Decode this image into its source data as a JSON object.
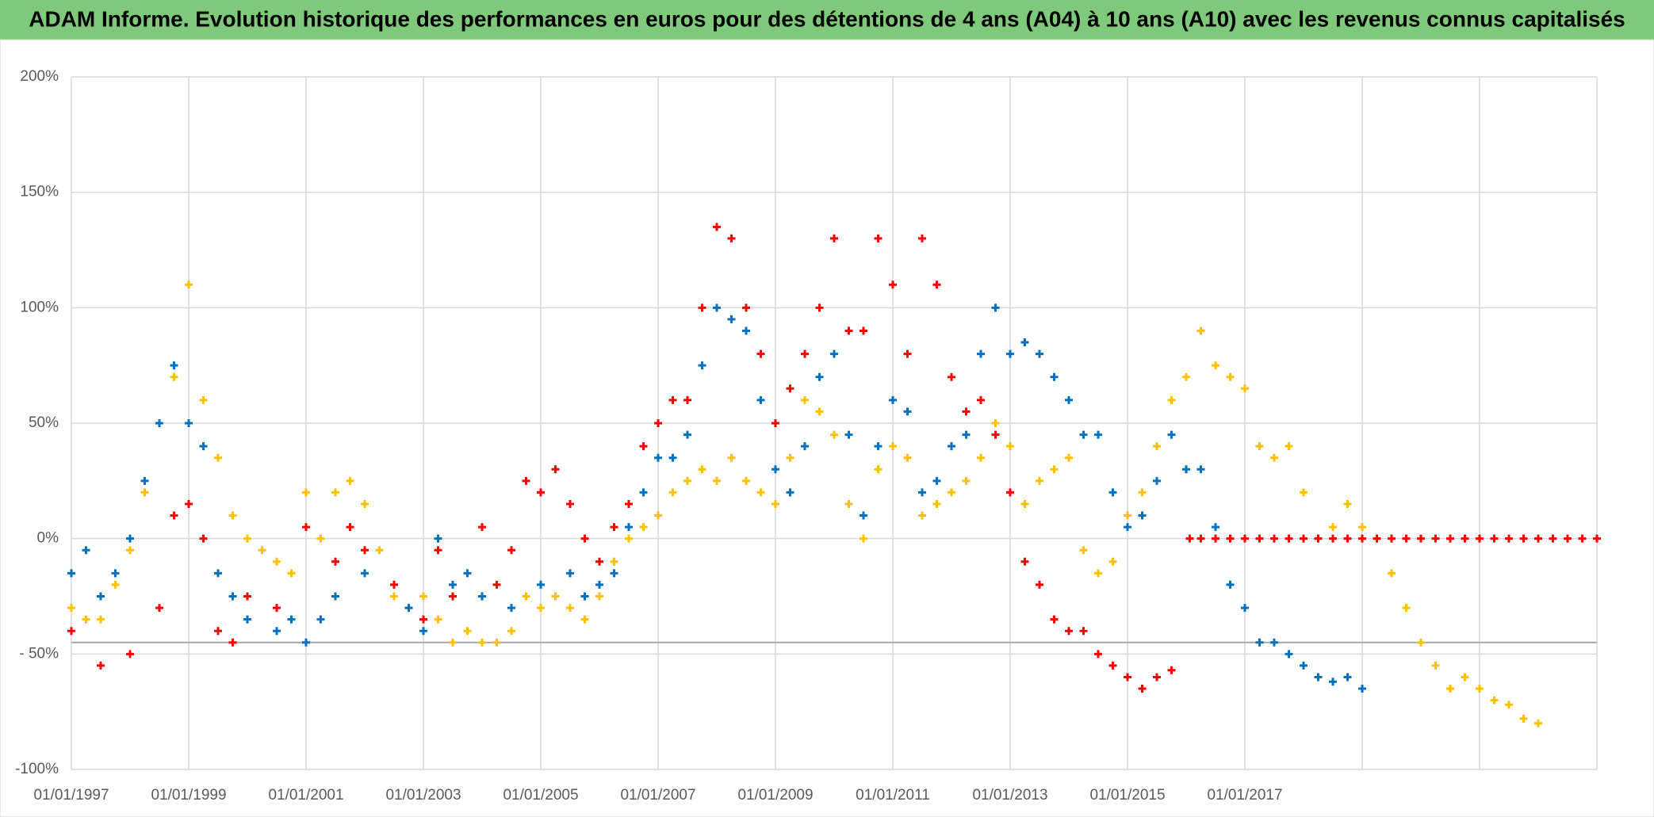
{
  "chart_data": {
    "type": "scatter",
    "title": "ADAM Informe. Evolution historique des performances en euros pour des détentions de 4 ans (A04) à 10 ans (A10) avec les revenus connus capitalisés",
    "xlim": [
      1997,
      2023
    ],
    "xticks": [
      {
        "value": 1997,
        "label": "01/01/1997"
      },
      {
        "value": 1999,
        "label": "01/01/1999"
      },
      {
        "value": 2001,
        "label": "01/01/2001"
      },
      {
        "value": 2003,
        "label": "01/01/2003"
      },
      {
        "value": 2005,
        "label": "01/01/2005"
      },
      {
        "value": 2007,
        "label": "01/01/2007"
      },
      {
        "value": 2009,
        "label": "01/01/2009"
      },
      {
        "value": 2011,
        "label": "01/01/2011"
      },
      {
        "value": 2013,
        "label": "01/01/2013"
      },
      {
        "value": 2015,
        "label": "01/01/2015"
      },
      {
        "value": 2017,
        "label": "01/01/2017"
      },
      {
        "value": 2019,
        "label": null
      },
      {
        "value": 2021,
        "label": null
      },
      {
        "value": 2023,
        "label": null
      }
    ],
    "ylim": [
      -100,
      200
    ],
    "yticks": [
      {
        "value": -100,
        "label": "-100%"
      },
      {
        "value": -50,
        "label": "- 50%"
      },
      {
        "value": 0,
        "label": "0%"
      },
      {
        "value": 50,
        "label": "50%"
      },
      {
        "value": 100,
        "label": "100%"
      },
      {
        "value": 150,
        "label": "150%"
      },
      {
        "value": 200,
        "label": "200%"
      }
    ],
    "grid": true,
    "reference_line": -45,
    "series": [
      {
        "color": "#ffc000",
        "x": [
          1997,
          1997.25,
          1997.5,
          1997.75,
          1998,
          1998.25,
          1998.5,
          1998.75,
          1999,
          1999.25,
          1999.5,
          1999.75,
          2000,
          2000.25,
          2000.5,
          2000.75,
          2001,
          2001.25,
          2001.5,
          2001.75,
          2002,
          2002.25,
          2002.5,
          2002.75,
          2003,
          2003.25,
          2003.5,
          2003.75,
          2004,
          2004.25,
          2004.5,
          2004.75,
          2005,
          2005.25,
          2005.5,
          2005.75,
          2006,
          2006.25,
          2006.5,
          2006.75,
          2007,
          2007.25,
          2007.5,
          2007.75,
          2008,
          2008.25,
          2008.5,
          2008.75,
          2009,
          2009.25,
          2009.5,
          2009.75,
          2010,
          2010.25,
          2010.5,
          2010.75,
          2011,
          2011.25,
          2011.5,
          2011.75,
          2012,
          2012.25,
          2012.5,
          2012.75,
          2013,
          2013.25,
          2013.5,
          2013.75,
          2014,
          2014.25,
          2014.5,
          2014.75,
          2015,
          2015.25,
          2015.5,
          2015.75,
          2016,
          2016.25,
          2016.5,
          2016.75,
          2017,
          2017.25,
          2017.5,
          2017.75,
          2018,
          2018.25,
          2018.5,
          2018.75,
          2019,
          2019.25,
          2019.5,
          2019.75,
          2020,
          2020.25,
          2020.5,
          2020.75,
          2021,
          2021.25,
          2021.5,
          2021.75,
          2022
        ],
        "values": [
          -30,
          -35,
          -35,
          -20,
          -5,
          20,
          50,
          70,
          110,
          60,
          35,
          10,
          0,
          -5,
          -10,
          -15,
          20,
          0,
          20,
          25,
          15,
          -5,
          -25,
          -30,
          -25,
          -35,
          -45,
          -40,
          -45,
          -45,
          -40,
          -25,
          -30,
          -25,
          -30,
          -35,
          -25,
          -10,
          0,
          5,
          10,
          20,
          25,
          30,
          25,
          35,
          25,
          20,
          15,
          35,
          60,
          55,
          45,
          15,
          0,
          30,
          40,
          35,
          10,
          15,
          20,
          25,
          35,
          50,
          40,
          15,
          25,
          30,
          35,
          -5,
          -15,
          -10,
          10,
          20,
          40,
          60,
          70,
          90,
          75,
          70,
          65,
          40,
          35,
          40,
          20,
          0,
          5,
          15,
          5,
          0,
          -15,
          -30,
          -45,
          -55,
          -65,
          -60,
          -65,
          -70,
          -72,
          -78,
          -80
        ]
      },
      {
        "color": "#0070c0",
        "x": [
          1997,
          1997.25,
          1997.5,
          1997.75,
          1998,
          1998.25,
          1998.5,
          1998.75,
          1999,
          1999.25,
          1999.5,
          1999.75,
          2000,
          2000.5,
          2000.75,
          2001,
          2001.25,
          2001.5,
          2002,
          2002.5,
          2002.75,
          2003,
          2003.25,
          2003.5,
          2003.75,
          2004,
          2004.5,
          2005,
          2005.5,
          2005.75,
          2006,
          2006.25,
          2006.5,
          2006.75,
          2007,
          2007.25,
          2007.5,
          2007.75,
          2008,
          2008.25,
          2008.5,
          2008.75,
          2009,
          2009.25,
          2009.5,
          2009.75,
          2010,
          2010.25,
          2010.5,
          2010.75,
          2011,
          2011.25,
          2011.5,
          2011.75,
          2012,
          2012.25,
          2012.5,
          2012.75,
          2013,
          2013.25,
          2013.5,
          2013.75,
          2014,
          2014.25,
          2014.5,
          2014.75,
          2015,
          2015.25,
          2015.5,
          2015.75,
          2016,
          2016.25,
          2016.5,
          2016.75,
          2017,
          2017.25,
          2017.5,
          2017.75,
          2018,
          2018.25,
          2018.5,
          2018.75,
          2019
        ],
        "values": [
          -15,
          -5,
          -25,
          -15,
          0,
          25,
          50,
          75,
          50,
          40,
          -15,
          -25,
          -35,
          -40,
          -35,
          -45,
          -35,
          -25,
          -15,
          -20,
          -30,
          -40,
          0,
          -20,
          -15,
          -25,
          -30,
          -20,
          -15,
          -25,
          -20,
          -15,
          5,
          20,
          35,
          35,
          45,
          75,
          100,
          95,
          90,
          60,
          30,
          20,
          40,
          70,
          80,
          45,
          10,
          40,
          60,
          55,
          20,
          25,
          40,
          45,
          80,
          100,
          80,
          85,
          80,
          70,
          60,
          45,
          45,
          20,
          5,
          10,
          25,
          45,
          30,
          30,
          5,
          -20,
          -30,
          -45,
          -45,
          -50,
          -55,
          -60,
          -62,
          -60,
          -65
        ]
      },
      {
        "color": "#ff0000",
        "x": [
          1997,
          1997.5,
          1998,
          1998.5,
          1998.75,
          1999,
          1999.25,
          1999.5,
          1999.75,
          2000,
          2000.5,
          2001,
          2001.5,
          2001.75,
          2002,
          2002.5,
          2003,
          2003.25,
          2003.5,
          2004,
          2004.25,
          2004.5,
          2004.75,
          2005,
          2005.25,
          2005.5,
          2005.75,
          2006,
          2006.25,
          2006.5,
          2006.75,
          2007,
          2007.25,
          2007.5,
          2007.75,
          2008,
          2008.25,
          2008.5,
          2008.75,
          2009,
          2009.25,
          2009.5,
          2009.75,
          2010,
          2010.25,
          2010.5,
          2010.75,
          2011,
          2011.25,
          2011.5,
          2011.75,
          2012,
          2012.25,
          2012.5,
          2012.75,
          2013,
          2013.25,
          2013.5,
          2013.75,
          2014,
          2014.25,
          2014.5,
          2014.75,
          2015,
          2015.25,
          2015.5,
          2015.75,
          2016.06,
          2016.25,
          2016.5,
          2016.75,
          2017,
          2017.25,
          2017.5,
          2017.75,
          2018,
          2018.25,
          2018.5,
          2018.75,
          2019,
          2019.25,
          2019.5,
          2019.75,
          2020,
          2020.25,
          2020.5,
          2020.75,
          2021,
          2021.25,
          2021.5,
          2021.75,
          2022,
          2022.25,
          2022.5,
          2022.75,
          2023
        ],
        "values": [
          -40,
          -55,
          -50,
          -30,
          10,
          15,
          0,
          -40,
          -45,
          -25,
          -30,
          5,
          -10,
          5,
          -5,
          -20,
          -35,
          -5,
          -25,
          5,
          -20,
          -5,
          25,
          20,
          30,
          15,
          0,
          -10,
          5,
          15,
          40,
          50,
          60,
          60,
          100,
          135,
          130,
          100,
          80,
          50,
          65,
          80,
          100,
          130,
          90,
          90,
          130,
          110,
          80,
          130,
          110,
          70,
          55,
          60,
          45,
          20,
          -10,
          -20,
          -35,
          -40,
          -40,
          -50,
          -55,
          -60,
          -65,
          -60,
          -57,
          0,
          0,
          0,
          0,
          0,
          0,
          0,
          0,
          0,
          0,
          0,
          0,
          0,
          0,
          0,
          0,
          0,
          0,
          0,
          0,
          0,
          0,
          0,
          0,
          0,
          0,
          0,
          0,
          0
        ]
      }
    ]
  }
}
